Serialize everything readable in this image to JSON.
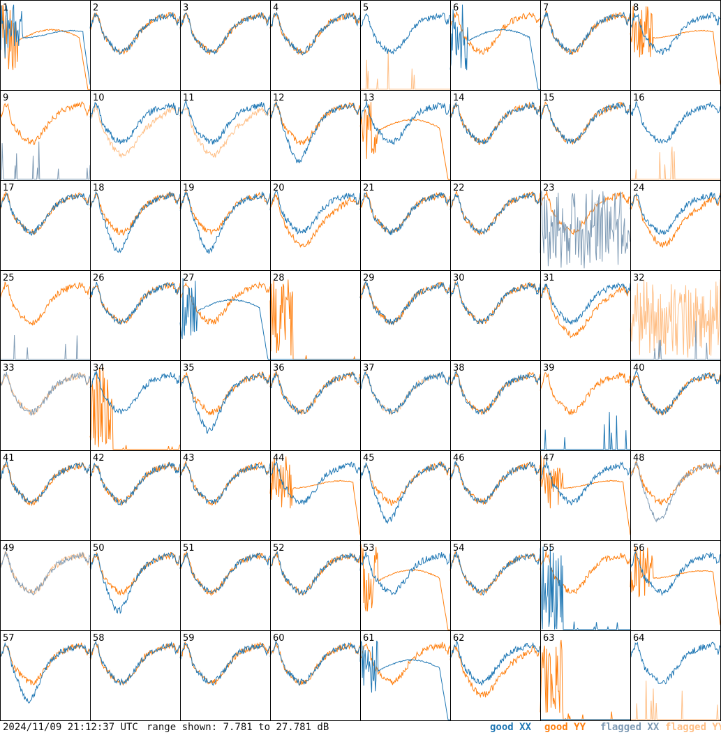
{
  "footer": {
    "timestamp": "2024/11/09 21:12:37 UTC",
    "range": "range shown: 7.781 to 27.781 dB"
  },
  "legend": [
    {
      "label": "good XX",
      "color": "#1f77b4"
    },
    {
      "label": "good YY",
      "color": "#ff7f0e"
    },
    {
      "label": "flagged XX",
      "color": "#7f9bb5"
    },
    {
      "label": "flagged YY",
      "color": "#ffbf86"
    }
  ],
  "chart_data": {
    "type": "line",
    "description_units": "spectrum level, dB",
    "ylim": [
      7.781,
      27.781
    ],
    "grid": "8x8 small multiples, tiles numbered 1-64",
    "tiles": [
      {
        "id": 1,
        "xx": "good",
        "yy": "good",
        "xx_shape": "plateau",
        "yy_shape": "rolloff"
      },
      {
        "id": 2,
        "xx": "good",
        "yy": "good",
        "xx_shape": "normal",
        "yy_shape": "normal"
      },
      {
        "id": 3,
        "xx": "good",
        "yy": "good",
        "xx_shape": "normal",
        "yy_shape": "normal"
      },
      {
        "id": 4,
        "xx": "good",
        "yy": "good",
        "xx_shape": "normal",
        "yy_shape": "normal"
      },
      {
        "id": 5,
        "xx": "good",
        "yy": "flagged",
        "xx_shape": "normal",
        "yy_shape": "spikes"
      },
      {
        "id": 6,
        "xx": "good",
        "yy": "good",
        "xx_shape": "rolloff",
        "yy_shape": "normal"
      },
      {
        "id": 7,
        "xx": "good",
        "yy": "good",
        "xx_shape": "normal",
        "yy_shape": "normal"
      },
      {
        "id": 8,
        "xx": "good",
        "yy": "good",
        "xx_shape": "normal",
        "yy_shape": "plateau"
      },
      {
        "id": 9,
        "xx": "flagged",
        "yy": "good",
        "xx_shape": "spikes",
        "yy_shape": "normal"
      },
      {
        "id": 10,
        "xx": "good",
        "yy": "flagged",
        "xx_shape": "normal",
        "yy_shape": "low"
      },
      {
        "id": 11,
        "xx": "good",
        "yy": "flagged",
        "xx_shape": "normal",
        "yy_shape": "low"
      },
      {
        "id": 12,
        "xx": "good",
        "yy": "good",
        "xx_shape": "dip",
        "yy_shape": "normal"
      },
      {
        "id": 13,
        "xx": "good",
        "yy": "good",
        "xx_shape": "normal",
        "yy_shape": "rolloff"
      },
      {
        "id": 14,
        "xx": "good",
        "yy": "good",
        "xx_shape": "normal",
        "yy_shape": "normal"
      },
      {
        "id": 15,
        "xx": "good",
        "yy": "good",
        "xx_shape": "normal",
        "yy_shape": "normal"
      },
      {
        "id": 16,
        "xx": "good",
        "yy": "flagged",
        "xx_shape": "normal",
        "yy_shape": "spikes"
      },
      {
        "id": 17,
        "xx": "good",
        "yy": "good",
        "xx_shape": "normal",
        "yy_shape": "normal"
      },
      {
        "id": 18,
        "xx": "good",
        "yy": "good",
        "xx_shape": "dip",
        "yy_shape": "normal"
      },
      {
        "id": 19,
        "xx": "good",
        "yy": "good",
        "xx_shape": "dip",
        "yy_shape": "normal"
      },
      {
        "id": 20,
        "xx": "good",
        "yy": "good",
        "xx_shape": "normal",
        "yy_shape": "low"
      },
      {
        "id": 21,
        "xx": "good",
        "yy": "good",
        "xx_shape": "normal",
        "yy_shape": "normal"
      },
      {
        "id": 22,
        "xx": "good",
        "yy": "good",
        "xx_shape": "normal",
        "yy_shape": "normal"
      },
      {
        "id": 23,
        "xx": "flagged",
        "yy": "good",
        "xx_shape": "noise",
        "yy_shape": "normal"
      },
      {
        "id": 24,
        "xx": "good",
        "yy": "good",
        "xx_shape": "normal",
        "yy_shape": "low"
      },
      {
        "id": 25,
        "xx": "flagged",
        "yy": "good",
        "xx_shape": "spikes",
        "yy_shape": "normal"
      },
      {
        "id": 26,
        "xx": "good",
        "yy": "good",
        "xx_shape": "normal",
        "yy_shape": "normal"
      },
      {
        "id": 27,
        "xx": "good",
        "yy": "good",
        "xx_shape": "rolloff",
        "yy_shape": "normal"
      },
      {
        "id": 28,
        "xx": "good",
        "yy": "good",
        "xx_shape": "flat",
        "yy_shape": "burst"
      },
      {
        "id": 29,
        "xx": "good",
        "yy": "good",
        "xx_shape": "normal",
        "yy_shape": "normal"
      },
      {
        "id": 30,
        "xx": "good",
        "yy": "good",
        "xx_shape": "normal",
        "yy_shape": "normal"
      },
      {
        "id": 31,
        "xx": "good",
        "yy": "good",
        "xx_shape": "normal",
        "yy_shape": "low"
      },
      {
        "id": 32,
        "xx": "flagged",
        "yy": "flagged",
        "xx_shape": "spikes",
        "yy_shape": "noise"
      },
      {
        "id": 33,
        "xx": "flagged",
        "yy": "flagged",
        "xx_shape": "normal",
        "yy_shape": "normal"
      },
      {
        "id": 34,
        "xx": "good",
        "yy": "good",
        "xx_shape": "normal",
        "yy_shape": "burst"
      },
      {
        "id": 35,
        "xx": "good",
        "yy": "good",
        "xx_shape": "dip",
        "yy_shape": "normal"
      },
      {
        "id": 36,
        "xx": "good",
        "yy": "good",
        "xx_shape": "normal",
        "yy_shape": "normal"
      },
      {
        "id": 37,
        "xx": "good",
        "yy": "flagged",
        "xx_shape": "normal",
        "yy_shape": "normal"
      },
      {
        "id": 38,
        "xx": "good",
        "yy": "good",
        "xx_shape": "normal",
        "yy_shape": "normal"
      },
      {
        "id": 39,
        "xx": "good",
        "yy": "good",
        "xx_shape": "spikes",
        "yy_shape": "normal"
      },
      {
        "id": 40,
        "xx": "good",
        "yy": "good",
        "xx_shape": "normal",
        "yy_shape": "normal"
      },
      {
        "id": 41,
        "xx": "good",
        "yy": "good",
        "xx_shape": "normal",
        "yy_shape": "normal"
      },
      {
        "id": 42,
        "xx": "good",
        "yy": "good",
        "xx_shape": "normal",
        "yy_shape": "normal"
      },
      {
        "id": 43,
        "xx": "good",
        "yy": "good",
        "xx_shape": "normal",
        "yy_shape": "normal"
      },
      {
        "id": 44,
        "xx": "good",
        "yy": "good",
        "xx_shape": "normal",
        "yy_shape": "plateau"
      },
      {
        "id": 45,
        "xx": "good",
        "yy": "good",
        "xx_shape": "dip",
        "yy_shape": "normal"
      },
      {
        "id": 46,
        "xx": "good",
        "yy": "good",
        "xx_shape": "normal",
        "yy_shape": "normal"
      },
      {
        "id": 47,
        "xx": "good",
        "yy": "good",
        "xx_shape": "normal",
        "yy_shape": "plateau"
      },
      {
        "id": 48,
        "xx": "flagged",
        "yy": "good",
        "xx_shape": "dip",
        "yy_shape": "normal"
      },
      {
        "id": 49,
        "xx": "flagged",
        "yy": "flagged",
        "xx_shape": "normal",
        "yy_shape": "normal"
      },
      {
        "id": 50,
        "xx": "good",
        "yy": "good",
        "xx_shape": "dip",
        "yy_shape": "normal"
      },
      {
        "id": 51,
        "xx": "good",
        "yy": "good",
        "xx_shape": "normal",
        "yy_shape": "normal"
      },
      {
        "id": 52,
        "xx": "good",
        "yy": "good",
        "xx_shape": "normal",
        "yy_shape": "normal"
      },
      {
        "id": 53,
        "xx": "good",
        "yy": "good",
        "xx_shape": "normal",
        "yy_shape": "rolloff"
      },
      {
        "id": 54,
        "xx": "good",
        "yy": "good",
        "xx_shape": "normal",
        "yy_shape": "normal"
      },
      {
        "id": 55,
        "xx": "good",
        "yy": "good",
        "xx_shape": "burst",
        "yy_shape": "normal"
      },
      {
        "id": 56,
        "xx": "good",
        "yy": "good",
        "xx_shape": "normal",
        "yy_shape": "plateau"
      },
      {
        "id": 57,
        "xx": "good",
        "yy": "good",
        "xx_shape": "dip",
        "yy_shape": "normal"
      },
      {
        "id": 58,
        "xx": "good",
        "yy": "good",
        "xx_shape": "normal",
        "yy_shape": "normal"
      },
      {
        "id": 59,
        "xx": "good",
        "yy": "good",
        "xx_shape": "normal",
        "yy_shape": "normal"
      },
      {
        "id": 60,
        "xx": "good",
        "yy": "good",
        "xx_shape": "normal",
        "yy_shape": "normal"
      },
      {
        "id": 61,
        "xx": "good",
        "yy": "good",
        "xx_shape": "rolloff",
        "yy_shape": "normal"
      },
      {
        "id": 62,
        "xx": "good",
        "yy": "good",
        "xx_shape": "normal",
        "yy_shape": "low"
      },
      {
        "id": 63,
        "xx": "good",
        "yy": "good",
        "xx_shape": "flat",
        "yy_shape": "burst"
      },
      {
        "id": 64,
        "xx": "good",
        "yy": "flagged",
        "xx_shape": "normal",
        "yy_shape": "spikes"
      }
    ]
  }
}
